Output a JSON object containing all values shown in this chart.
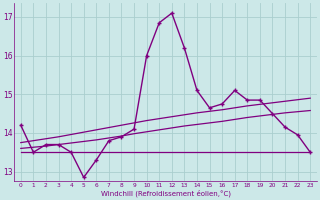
{
  "x": [
    0,
    1,
    2,
    3,
    4,
    5,
    6,
    7,
    8,
    9,
    10,
    11,
    12,
    13,
    14,
    15,
    16,
    17,
    18,
    19,
    20,
    21,
    22,
    23
  ],
  "y_main": [
    14.2,
    13.5,
    13.7,
    13.7,
    13.5,
    12.85,
    13.3,
    13.8,
    13.9,
    14.1,
    16.0,
    16.85,
    17.1,
    16.2,
    15.1,
    14.65,
    14.75,
    15.1,
    14.85,
    14.85,
    14.5,
    14.15,
    13.95,
    13.5
  ],
  "y_flat": [
    13.5,
    13.5,
    13.5,
    13.5,
    13.5,
    13.5,
    13.5,
    13.5,
    13.5,
    13.5,
    13.5,
    13.5,
    13.5,
    13.5,
    13.5,
    13.5,
    13.5,
    13.5,
    13.5,
    13.5,
    13.5,
    13.5,
    13.5,
    13.5
  ],
  "y_trend1": [
    13.6,
    13.63,
    13.66,
    13.7,
    13.74,
    13.78,
    13.82,
    13.87,
    13.92,
    13.98,
    14.03,
    14.08,
    14.13,
    14.18,
    14.22,
    14.26,
    14.3,
    14.35,
    14.4,
    14.44,
    14.48,
    14.52,
    14.55,
    14.58
  ],
  "y_trend2": [
    13.75,
    13.8,
    13.85,
    13.9,
    13.96,
    14.02,
    14.08,
    14.14,
    14.2,
    14.26,
    14.32,
    14.37,
    14.42,
    14.47,
    14.52,
    14.56,
    14.6,
    14.65,
    14.7,
    14.74,
    14.78,
    14.82,
    14.86,
    14.9
  ],
  "color": "#800080",
  "background": "#cce8e8",
  "grid_color": "#aacece",
  "ylim": [
    12.75,
    17.35
  ],
  "xlim": [
    -0.5,
    23.5
  ],
  "yticks": [
    13,
    14,
    15,
    16,
    17
  ],
  "xticks": [
    0,
    1,
    2,
    3,
    4,
    5,
    6,
    7,
    8,
    9,
    10,
    11,
    12,
    13,
    14,
    15,
    16,
    17,
    18,
    19,
    20,
    21,
    22,
    23
  ],
  "xlabel": "Windchill (Refroidissement éolien,°C)"
}
